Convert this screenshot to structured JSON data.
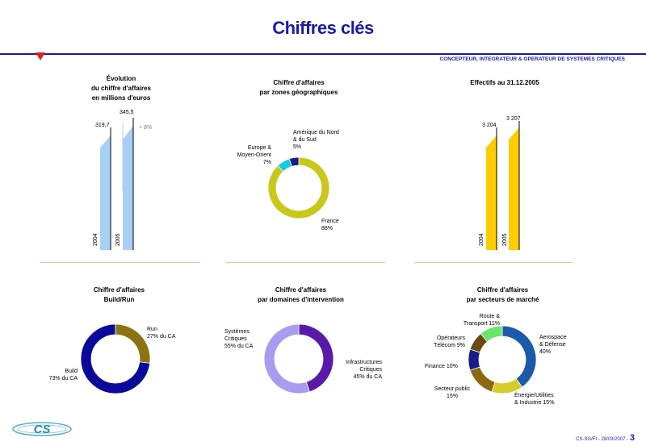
{
  "header": {
    "title": "Chiffres clés",
    "tagline": "CONCEPTEUR, INTEGRATEUR & OPERATEUR DE SYSTEMES CRITIQUES"
  },
  "revenue_evolution": {
    "title_lines": [
      "Évolution",
      "du chiffre d'affaires",
      "en millions d'euros"
    ],
    "growth_label": "+ 8%",
    "bars": [
      {
        "year": "2004",
        "value_label": "319,7"
      },
      {
        "year": "2005",
        "value_label": "345,5"
      }
    ]
  },
  "geo": {
    "title_lines": [
      "Chiffre d'affaires",
      "par zones géographiques"
    ],
    "labels": {
      "north_america": [
        "Amérique du Nord",
        "& du Sud",
        "5%"
      ],
      "europe": [
        "Europe &",
        "Moyen-Orient",
        "7%"
      ],
      "france": [
        "France",
        "88%"
      ]
    }
  },
  "headcount": {
    "title_lines": [
      "Effectifs au 31.12.2005"
    ],
    "bars": [
      {
        "year": "2004",
        "value_label": "3 204"
      },
      {
        "year": "2005",
        "value_label": "3 207"
      }
    ]
  },
  "build_run": {
    "title_lines": [
      "Chiffre d'affaires",
      "Build/Run"
    ],
    "labels": {
      "run": [
        "Run",
        "27% du CA"
      ],
      "build": [
        "Build",
        "73% du CA"
      ]
    }
  },
  "domains": {
    "title_lines": [
      "Chiffre d'affaires",
      "par domaines d'intervention"
    ],
    "labels": {
      "systemes": [
        "Systèmes",
        "Critiques",
        "55% du CA"
      ],
      "infra": [
        "Infrastructures",
        "Critiques",
        "45% du CA"
      ]
    }
  },
  "sectors": {
    "title_lines": [
      "Chiffre d'affaires",
      "par secteurs de marché"
    ],
    "labels": {
      "aero": [
        "Aerospace",
        "& Défense",
        "40%"
      ],
      "energie": [
        "Énergie/Utilities",
        "& Industrie 15%"
      ],
      "public": [
        "Secteur public",
        "15%"
      ],
      "finance": [
        "Finance 10%"
      ],
      "telecom": [
        "Opérateurs",
        "Télécom 9%"
      ],
      "route": [
        "Route &",
        "Transport 11%"
      ]
    }
  },
  "footer": {
    "logo_text": "CS",
    "ref": "CS-SG/FI - 28/03/2007 -",
    "page": "3"
  },
  "chart_data": [
    {
      "type": "bar",
      "title": "Évolution du chiffre d'affaires en millions d'euros",
      "categories": [
        "2004",
        "2005"
      ],
      "values": [
        319.7,
        345.5
      ],
      "annotation": "+ 8%"
    },
    {
      "type": "pie",
      "title": "Chiffre d'affaires par zones géographiques",
      "categories": [
        "France",
        "Europe & Moyen-Orient",
        "Amérique du Nord & du Sud"
      ],
      "values": [
        88,
        7,
        5
      ],
      "colors": [
        "#c8c81a",
        "#19c9e3",
        "#1a1a8c"
      ]
    },
    {
      "type": "bar",
      "title": "Effectifs au 31.12.2005",
      "categories": [
        "2004",
        "2005"
      ],
      "values": [
        3204,
        3207
      ]
    },
    {
      "type": "pie",
      "title": "Chiffre d'affaires Build/Run",
      "categories": [
        "Run",
        "Build"
      ],
      "values": [
        27,
        73
      ],
      "colors": [
        "#8a7410",
        "#0a0a9a"
      ]
    },
    {
      "type": "pie",
      "title": "Chiffre d'affaires par domaines d'intervention",
      "categories": [
        "Infrastructures Critiques",
        "Systèmes Critiques"
      ],
      "values": [
        45,
        55
      ],
      "colors": [
        "#5a1aa8",
        "#a89cf0"
      ]
    },
    {
      "type": "pie",
      "title": "Chiffre d'affaires par secteurs de marché",
      "categories": [
        "Aerospace & Défense",
        "Énergie/Utilities & Industrie",
        "Secteur public",
        "Finance",
        "Opérateurs Télécom",
        "Route & Transport"
      ],
      "values": [
        40,
        15,
        15,
        10,
        9,
        11
      ],
      "colors": [
        "#1a5aa8",
        "#d4cc2a",
        "#8a6a10",
        "#1a1a8c",
        "#6a4a10",
        "#6ae46a"
      ]
    }
  ]
}
